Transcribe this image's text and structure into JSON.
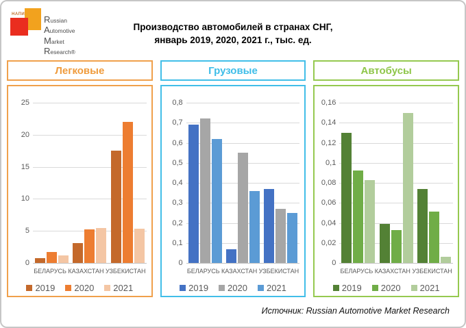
{
  "logo": {
    "napi": "НАПИ",
    "line1": "Russian",
    "line2": "Automotive",
    "line3": "Market",
    "line4": "Research®",
    "red": "#EA2D1F",
    "orange": "#F2A21E"
  },
  "title": {
    "line1": "Производство автомобилей в странах СНГ,",
    "line2": "январь 2019, 2020, 2021 г., тыс. ед."
  },
  "source": "Источник: Russian Automotive Market Research",
  "chart_data": [
    {
      "type": "bar",
      "title": "Легковые",
      "accent": "#F0A04B",
      "title_color": "#EF9B3C",
      "categories": [
        "БЕЛАРУСЬ",
        "КАЗАХСТАН",
        "УЗБЕКИСТАН"
      ],
      "series": [
        {
          "name": "2019",
          "color": "#C4692B",
          "values": [
            0.8,
            3.1,
            17.5
          ]
        },
        {
          "name": "2020",
          "color": "#ED7D31",
          "values": [
            1.7,
            5.2,
            22.0
          ]
        },
        {
          "name": "2021",
          "color": "#F4C6A4",
          "values": [
            1.2,
            5.4,
            5.3
          ]
        }
      ],
      "ylim": [
        0,
        25
      ],
      "ytick_step": 5,
      "ytick_labels": [
        "0",
        "5",
        "10",
        "15",
        "20",
        "25"
      ],
      "grid": true,
      "legend_position": "bottom"
    },
    {
      "type": "bar",
      "title": "Грузовые",
      "accent": "#41BEE8",
      "title_color": "#3EBDE8",
      "categories": [
        "БЕЛАРУСЬ",
        "КАЗАХСТАН",
        "УЗБЕКИСТАН"
      ],
      "series": [
        {
          "name": "2019",
          "color": "#4472C4",
          "values": [
            0.69,
            0.07,
            0.37
          ]
        },
        {
          "name": "2020",
          "color": "#A6A6A6",
          "values": [
            0.72,
            0.55,
            0.27
          ]
        },
        {
          "name": "2021",
          "color": "#5B9BD5",
          "values": [
            0.62,
            0.36,
            0.25
          ]
        }
      ],
      "ylim": [
        0,
        0.8
      ],
      "ytick_step": 0.1,
      "ytick_labels": [
        "0",
        "0,1",
        "0,2",
        "0,3",
        "0,4",
        "0,5",
        "0,6",
        "0,7",
        "0,8"
      ],
      "grid": true,
      "legend_position": "bottom"
    },
    {
      "type": "bar",
      "title": "Автобусы",
      "accent": "#95C94F",
      "title_color": "#8FC64A",
      "categories": [
        "БЕЛАРУСЬ",
        "КАЗАХСТАН",
        "УЗБЕКИСТАН"
      ],
      "series": [
        {
          "name": "2019",
          "color": "#538135",
          "values": [
            0.13,
            0.039,
            0.074
          ]
        },
        {
          "name": "2020",
          "color": "#70AD47",
          "values": [
            0.092,
            0.033,
            0.051
          ]
        },
        {
          "name": "2021",
          "color": "#B2CD9C",
          "values": [
            0.083,
            0.15,
            0.006
          ]
        }
      ],
      "ylim": [
        0,
        0.16
      ],
      "ytick_step": 0.02,
      "ytick_labels": [
        "0",
        "0,02",
        "0,04",
        "0,06",
        "0,08",
        "0,1",
        "0,12",
        "0,14",
        "0,16"
      ],
      "grid": true,
      "legend_position": "bottom"
    }
  ]
}
